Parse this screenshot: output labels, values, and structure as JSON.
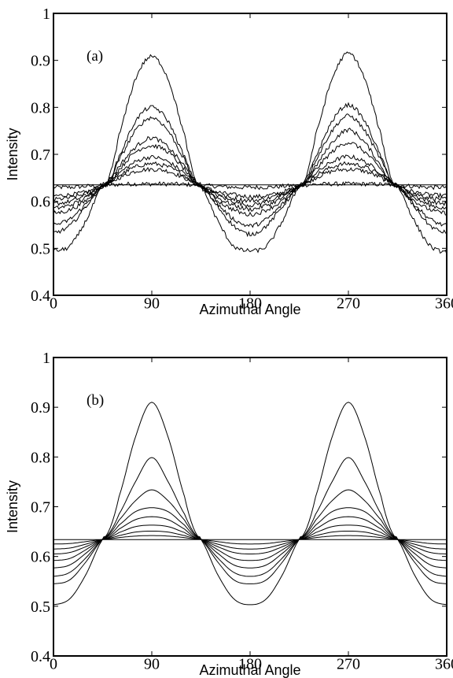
{
  "chart_data": [
    {
      "panel_label": "(a)",
      "type": "line",
      "xlabel": "Azimuthal Angle",
      "ylabel": "Intensity",
      "xlim": [
        0,
        360
      ],
      "ylim": [
        0.4,
        1
      ],
      "xticks": [
        "0",
        "90",
        "180",
        "270",
        "360"
      ],
      "yticks": [
        "0.4",
        "0.5",
        "0.6",
        "0.7",
        "0.8",
        "0.9",
        "1"
      ],
      "noisy": true,
      "x": [
        0,
        15,
        30,
        45,
        50,
        60,
        75,
        90,
        105,
        120,
        130,
        135,
        150,
        165,
        180,
        195,
        210,
        225,
        230,
        240,
        255,
        270,
        285,
        300,
        310,
        315,
        330,
        345,
        360
      ],
      "series": [
        {
          "values": [
            0.635,
            0.635,
            0.635,
            0.635,
            0.635,
            0.635,
            0.635,
            0.635,
            0.635,
            0.635,
            0.635,
            0.635,
            0.635,
            0.635,
            0.635,
            0.635,
            0.635,
            0.635,
            0.635,
            0.635,
            0.635,
            0.635,
            0.635,
            0.635,
            0.635,
            0.635,
            0.635,
            0.635,
            0.635
          ]
        },
        {
          "values": [
            0.63,
            0.63,
            0.632,
            0.634,
            0.635,
            0.636,
            0.637,
            0.637,
            0.637,
            0.636,
            0.635,
            0.634,
            0.632,
            0.63,
            0.63,
            0.63,
            0.632,
            0.634,
            0.635,
            0.636,
            0.637,
            0.637,
            0.637,
            0.636,
            0.635,
            0.634,
            0.632,
            0.63,
            0.63
          ]
        },
        {
          "values": [
            0.612,
            0.614,
            0.62,
            0.632,
            0.637,
            0.65,
            0.664,
            0.668,
            0.664,
            0.65,
            0.637,
            0.632,
            0.62,
            0.614,
            0.61,
            0.612,
            0.62,
            0.632,
            0.637,
            0.65,
            0.664,
            0.668,
            0.664,
            0.65,
            0.637,
            0.632,
            0.62,
            0.614,
            0.612
          ]
        },
        {
          "values": [
            0.604,
            0.608,
            0.617,
            0.632,
            0.638,
            0.655,
            0.673,
            0.68,
            0.673,
            0.655,
            0.638,
            0.632,
            0.617,
            0.606,
            0.602,
            0.606,
            0.617,
            0.632,
            0.638,
            0.655,
            0.673,
            0.68,
            0.673,
            0.655,
            0.638,
            0.632,
            0.617,
            0.608,
            0.604
          ]
        },
        {
          "values": [
            0.595,
            0.6,
            0.613,
            0.632,
            0.638,
            0.66,
            0.684,
            0.694,
            0.684,
            0.66,
            0.638,
            0.632,
            0.613,
            0.6,
            0.592,
            0.6,
            0.613,
            0.632,
            0.638,
            0.66,
            0.684,
            0.695,
            0.684,
            0.66,
            0.638,
            0.632,
            0.613,
            0.6,
            0.595
          ]
        },
        {
          "values": [
            0.585,
            0.592,
            0.608,
            0.632,
            0.639,
            0.668,
            0.705,
            0.718,
            0.705,
            0.668,
            0.639,
            0.632,
            0.608,
            0.592,
            0.583,
            0.592,
            0.608,
            0.632,
            0.639,
            0.668,
            0.705,
            0.725,
            0.705,
            0.668,
            0.639,
            0.632,
            0.608,
            0.592,
            0.585
          ]
        },
        {
          "values": [
            0.575,
            0.582,
            0.602,
            0.632,
            0.64,
            0.675,
            0.715,
            0.735,
            0.715,
            0.675,
            0.64,
            0.632,
            0.602,
            0.582,
            0.572,
            0.582,
            0.602,
            0.632,
            0.64,
            0.675,
            0.725,
            0.752,
            0.725,
            0.675,
            0.64,
            0.632,
            0.602,
            0.582,
            0.575
          ]
        },
        {
          "values": [
            0.55,
            0.562,
            0.595,
            0.632,
            0.641,
            0.688,
            0.75,
            0.778,
            0.75,
            0.688,
            0.641,
            0.632,
            0.595,
            0.562,
            0.548,
            0.562,
            0.595,
            0.632,
            0.641,
            0.688,
            0.75,
            0.782,
            0.75,
            0.688,
            0.641,
            0.632,
            0.595,
            0.562,
            0.548
          ]
        },
        {
          "values": [
            0.533,
            0.548,
            0.59,
            0.632,
            0.642,
            0.695,
            0.77,
            0.8,
            0.77,
            0.695,
            0.642,
            0.632,
            0.59,
            0.548,
            0.53,
            0.548,
            0.59,
            0.632,
            0.642,
            0.695,
            0.77,
            0.805,
            0.77,
            0.695,
            0.642,
            0.632,
            0.59,
            0.548,
            0.533
          ]
        },
        {
          "values": [
            0.495,
            0.505,
            0.56,
            0.632,
            0.645,
            0.74,
            0.86,
            0.908,
            0.86,
            0.74,
            0.645,
            0.632,
            0.56,
            0.505,
            0.495,
            0.505,
            0.56,
            0.632,
            0.645,
            0.74,
            0.86,
            0.915,
            0.86,
            0.74,
            0.645,
            0.632,
            0.56,
            0.505,
            0.492
          ]
        }
      ]
    },
    {
      "panel_label": "(b)",
      "type": "line",
      "xlabel": "Azimuthal Angle",
      "ylabel": "Intensity",
      "xlim": [
        0,
        360
      ],
      "ylim": [
        0.4,
        1
      ],
      "xticks": [
        "0",
        "90",
        "180",
        "270",
        "360"
      ],
      "yticks": [
        "0.4",
        "0.5",
        "0.6",
        "0.7",
        "0.8",
        "0.9",
        "1"
      ],
      "noisy": false,
      "x": [
        0,
        15,
        30,
        45,
        50,
        60,
        75,
        90,
        105,
        120,
        130,
        135,
        150,
        165,
        180,
        195,
        210,
        225,
        230,
        240,
        255,
        270,
        285,
        300,
        310,
        315,
        330,
        345,
        360
      ],
      "series": [
        {
          "values": [
            0.634,
            0.634,
            0.634,
            0.634,
            0.634,
            0.634,
            0.634,
            0.634,
            0.634,
            0.634,
            0.634,
            0.634,
            0.634,
            0.634,
            0.634,
            0.634,
            0.634,
            0.634,
            0.634,
            0.634,
            0.634,
            0.634,
            0.634,
            0.634,
            0.634,
            0.634,
            0.634,
            0.634,
            0.634
          ]
        },
        {
          "values": [
            0.625,
            0.626,
            0.63,
            0.634,
            0.635,
            0.638,
            0.641,
            0.642,
            0.641,
            0.638,
            0.635,
            0.634,
            0.63,
            0.626,
            0.625,
            0.626,
            0.63,
            0.634,
            0.635,
            0.638,
            0.641,
            0.642,
            0.641,
            0.638,
            0.635,
            0.634,
            0.63,
            0.626,
            0.625
          ]
        },
        {
          "values": [
            0.615,
            0.617,
            0.625,
            0.634,
            0.636,
            0.642,
            0.649,
            0.651,
            0.649,
            0.642,
            0.636,
            0.634,
            0.625,
            0.617,
            0.615,
            0.617,
            0.625,
            0.634,
            0.636,
            0.642,
            0.649,
            0.651,
            0.649,
            0.642,
            0.636,
            0.634,
            0.625,
            0.617,
            0.615
          ]
        },
        {
          "values": [
            0.605,
            0.608,
            0.62,
            0.634,
            0.637,
            0.648,
            0.66,
            0.663,
            0.66,
            0.648,
            0.637,
            0.634,
            0.62,
            0.608,
            0.605,
            0.608,
            0.62,
            0.634,
            0.637,
            0.648,
            0.66,
            0.663,
            0.66,
            0.648,
            0.637,
            0.634,
            0.62,
            0.608,
            0.605
          ]
        },
        {
          "values": [
            0.592,
            0.596,
            0.614,
            0.634,
            0.638,
            0.655,
            0.674,
            0.68,
            0.674,
            0.655,
            0.638,
            0.634,
            0.614,
            0.596,
            0.592,
            0.596,
            0.614,
            0.634,
            0.638,
            0.655,
            0.674,
            0.68,
            0.674,
            0.655,
            0.638,
            0.634,
            0.614,
            0.596,
            0.592
          ]
        },
        {
          "values": [
            0.577,
            0.583,
            0.607,
            0.634,
            0.64,
            0.663,
            0.69,
            0.698,
            0.69,
            0.663,
            0.64,
            0.634,
            0.607,
            0.583,
            0.577,
            0.583,
            0.607,
            0.634,
            0.64,
            0.663,
            0.69,
            0.698,
            0.69,
            0.663,
            0.64,
            0.634,
            0.607,
            0.583,
            0.577
          ]
        },
        {
          "values": [
            0.56,
            0.568,
            0.598,
            0.634,
            0.642,
            0.673,
            0.712,
            0.734,
            0.712,
            0.673,
            0.642,
            0.634,
            0.598,
            0.568,
            0.56,
            0.568,
            0.598,
            0.634,
            0.642,
            0.673,
            0.712,
            0.734,
            0.712,
            0.673,
            0.642,
            0.634,
            0.598,
            0.568,
            0.56
          ]
        },
        {
          "values": [
            0.545,
            0.553,
            0.59,
            0.634,
            0.644,
            0.685,
            0.75,
            0.799,
            0.75,
            0.685,
            0.644,
            0.634,
            0.59,
            0.553,
            0.545,
            0.553,
            0.59,
            0.634,
            0.644,
            0.685,
            0.75,
            0.799,
            0.75,
            0.685,
            0.644,
            0.634,
            0.59,
            0.553,
            0.545
          ]
        },
        {
          "values": [
            0.503,
            0.515,
            0.565,
            0.634,
            0.648,
            0.72,
            0.84,
            0.91,
            0.84,
            0.72,
            0.648,
            0.634,
            0.565,
            0.515,
            0.503,
            0.515,
            0.565,
            0.634,
            0.648,
            0.72,
            0.84,
            0.91,
            0.84,
            0.72,
            0.648,
            0.634,
            0.565,
            0.515,
            0.503
          ]
        }
      ]
    }
  ]
}
